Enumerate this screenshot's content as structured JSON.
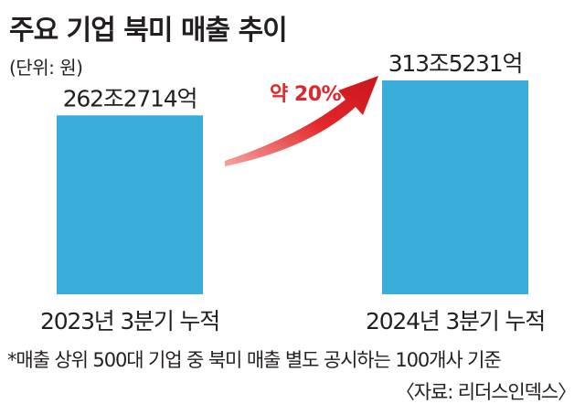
{
  "chart_data": {
    "type": "bar",
    "title": "주요 기업 북미 매출 추이",
    "unit": "(단위: 원)",
    "categories": [
      "2023년 3분기 누적",
      "2024년 3분기 누적"
    ],
    "values": [
      2622714,
      3135231
    ],
    "value_labels": [
      "262조2714억",
      "313조5231억"
    ],
    "annotation": "약 20%",
    "note": "*매출 상위 500대 기업 중 북미 매출 별도 공시하는 100개사 기준",
    "source": "〈자료: 리더스인덱스〉",
    "bar_color": "#3aaddb",
    "annotation_color": "#e3262a"
  }
}
